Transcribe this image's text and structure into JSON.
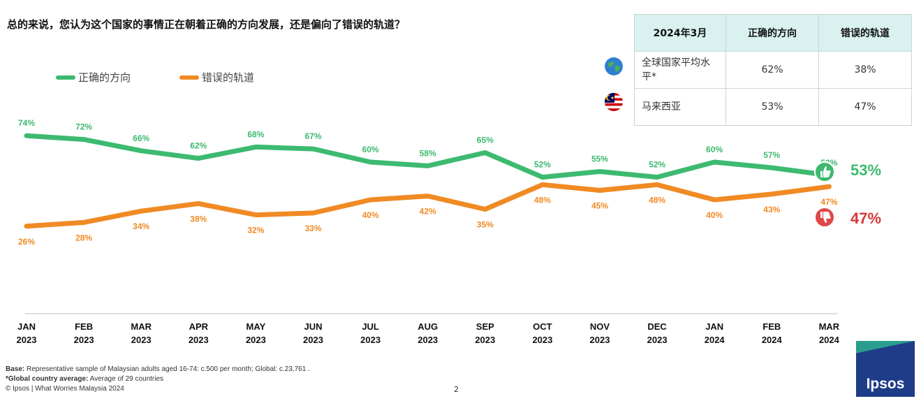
{
  "question": "总的来说，您认为这个国家的事情正在朝着正确的方向发展，还是偏向了错误的轨道？",
  "legend": {
    "right": "正确的方向",
    "wrong": "错误的轨道"
  },
  "summary_table": {
    "headers": [
      "2024年3月",
      "正确的方向",
      "错误的轨道"
    ],
    "rows": [
      {
        "icon": "globe-icon",
        "label": "全球国家平均水平*",
        "right": "62%",
        "wrong": "38%"
      },
      {
        "icon": "malaysia-flag-icon",
        "label": "马来西亚",
        "right": "53%",
        "wrong": "47%"
      }
    ]
  },
  "chart_data": {
    "type": "line",
    "categories": [
      [
        "JAN",
        "2023"
      ],
      [
        "FEB",
        "2023"
      ],
      [
        "MAR",
        "2023"
      ],
      [
        "APR",
        "2023"
      ],
      [
        "MAY",
        "2023"
      ],
      [
        "JUN",
        "2023"
      ],
      [
        "JUL",
        "2023"
      ],
      [
        "AUG",
        "2023"
      ],
      [
        "SEP",
        "2023"
      ],
      [
        "OCT",
        "2023"
      ],
      [
        "NOV",
        "2023"
      ],
      [
        "DEC",
        "2023"
      ],
      [
        "JAN",
        "2024"
      ],
      [
        "FEB",
        "2024"
      ],
      [
        "MAR",
        "2024"
      ]
    ],
    "series": [
      {
        "name": "正确的方向",
        "color": "#3dba6f",
        "values": [
          74,
          72,
          66,
          62,
          68,
          67,
          60,
          58,
          65,
          52,
          55,
          52,
          60,
          57,
          53
        ],
        "end_label": "53%",
        "end_icon": "thumbs-up-icon"
      },
      {
        "name": "错误的轨道",
        "color": "#f08a24",
        "values": [
          26,
          28,
          34,
          38,
          32,
          33,
          40,
          42,
          35,
          48,
          45,
          48,
          40,
          43,
          47
        ],
        "end_label": "47%",
        "end_icon": "thumbs-down-icon",
        "end_label_color": "#d63a3a"
      }
    ],
    "label_format": "{v}%"
  },
  "footer": {
    "base_label": "Base:",
    "base_text": " Representative sample of Malaysian adults aged 16-74: c.500 per month; Global: c.23,761 .",
    "global_label": "*Global country average:",
    "global_text": " Average of 29 countries",
    "copyright": "© Ipsos | What Worries Malaysia 2024",
    "page_number": "2"
  },
  "logo": "Ipsos"
}
